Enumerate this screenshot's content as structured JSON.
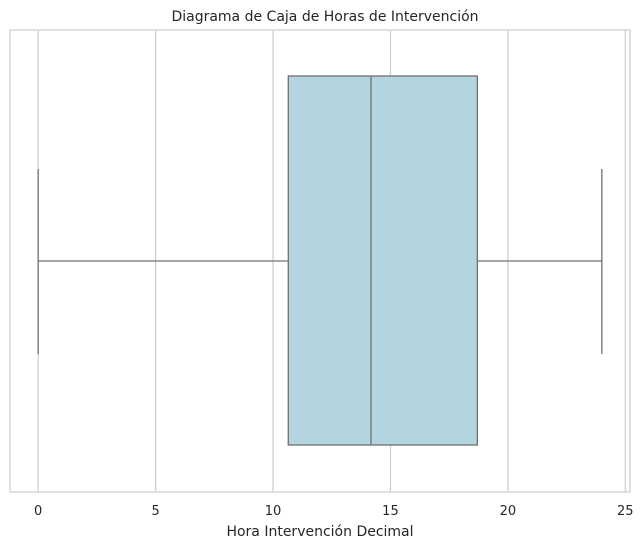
{
  "chart_data": {
    "type": "box",
    "title": "Diagrama de Caja de Horas de Intervención",
    "xlabel": "Hora Intervención Decimal",
    "ylabel": "",
    "orientation": "horizontal",
    "xlim": [
      -1.2,
      25.2
    ],
    "xticks": [
      0,
      5,
      10,
      15,
      20,
      25
    ],
    "grid": true,
    "box": {
      "whisker_low": 0.0,
      "q1": 10.65,
      "median": 14.17,
      "q3": 18.7,
      "whisker_high": 24.0
    },
    "colors": {
      "box_fill": "#b3d5e0",
      "box_edge": "#707070",
      "grid": "#cccccc",
      "frame": "#cccccc"
    }
  }
}
